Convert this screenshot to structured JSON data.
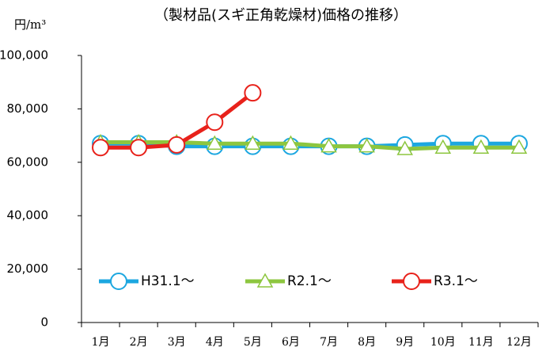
{
  "chart_data": {
    "type": "line",
    "title": "（製材品(スギ正角乾燥材)価格の推移）",
    "unit_label": "円/m³",
    "categories": [
      "1月",
      "2月",
      "3月",
      "4月",
      "5月",
      "6月",
      "7月",
      "8月",
      "9月",
      "10月",
      "11月",
      "12月"
    ],
    "series": [
      {
        "name": "H31.1～",
        "color": "#1ca7e0",
        "marker": "circle",
        "values": [
          67000,
          67000,
          66000,
          66000,
          66000,
          66000,
          66000,
          66000,
          66500,
          67000,
          67000,
          67000
        ]
      },
      {
        "name": "R2.1～",
        "color": "#8dc63f",
        "marker": "triangle",
        "values": [
          67500,
          67500,
          67500,
          67000,
          67000,
          67000,
          66000,
          66000,
          65000,
          65500,
          65500,
          65500
        ]
      },
      {
        "name": "R3.1～",
        "color": "#e8221b",
        "marker": "circle",
        "values": [
          65500,
          65500,
          66500,
          75000,
          86000,
          null,
          null,
          null,
          null,
          null,
          null,
          null
        ]
      }
    ],
    "ylim": [
      0,
      100000
    ],
    "yticks": [
      0,
      {
        "value": 20000,
        "label": "20,000"
      },
      {
        "value": 40000,
        "label": "40,000"
      },
      {
        "value": 60000,
        "label": "60,000"
      },
      {
        "value": 80000,
        "label": "80,000"
      },
      {
        "value": 100000,
        "label": "100,000"
      }
    ],
    "grid": false,
    "legend": "bottom"
  }
}
